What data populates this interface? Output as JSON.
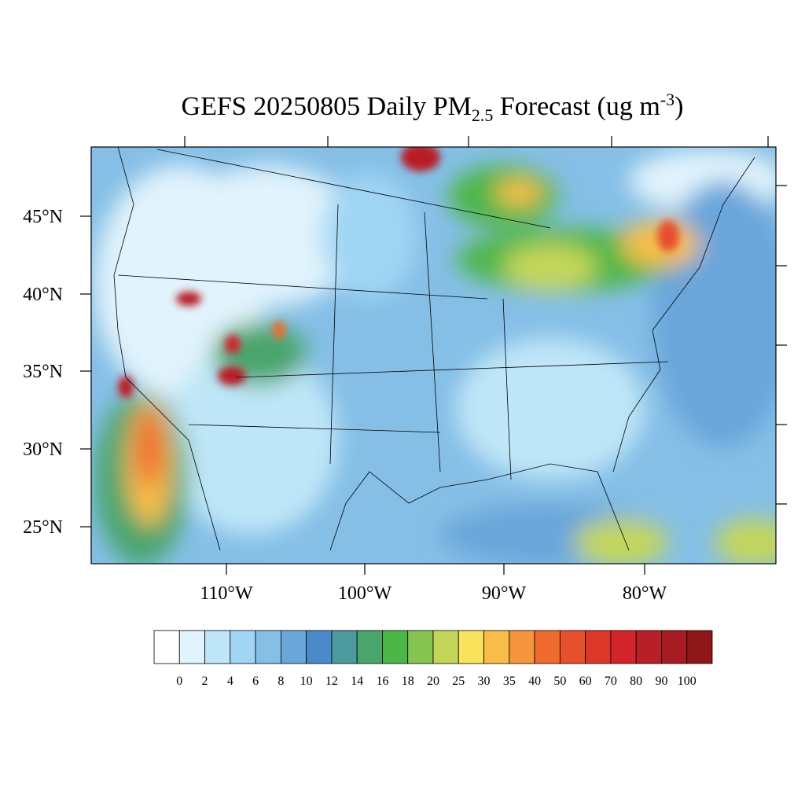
{
  "title": {
    "main": "GEFS 20250805 Daily PM",
    "subscript": "2.5",
    "middle": " Forecast (ug m",
    "superscript": "-3",
    "end": ")"
  },
  "lat_labels": [
    "45°N",
    "40°N",
    "35°N",
    "30°N",
    "25°N"
  ],
  "lon_labels": [
    "110°W",
    "100°W",
    "90°W",
    "80°W"
  ],
  "colorbar": {
    "levels": [
      0,
      2,
      4,
      6,
      8,
      10,
      12,
      14,
      16,
      18,
      20,
      25,
      30,
      35,
      40,
      50,
      60,
      70,
      80,
      90,
      100
    ],
    "colors": [
      "#ffffff",
      "#e1f3fc",
      "#bfe6f8",
      "#a0d6f4",
      "#85bfe6",
      "#6aa6da",
      "#4a8ac9",
      "#4a9a9e",
      "#4aa56d",
      "#4db649",
      "#85c451",
      "#c4d65a",
      "#f7e45c",
      "#f7bd48",
      "#f5953d",
      "#ef6b30",
      "#e5502d",
      "#dc3828",
      "#d3242b",
      "#b81f27",
      "#a61c22",
      "#8f1719"
    ]
  }
}
